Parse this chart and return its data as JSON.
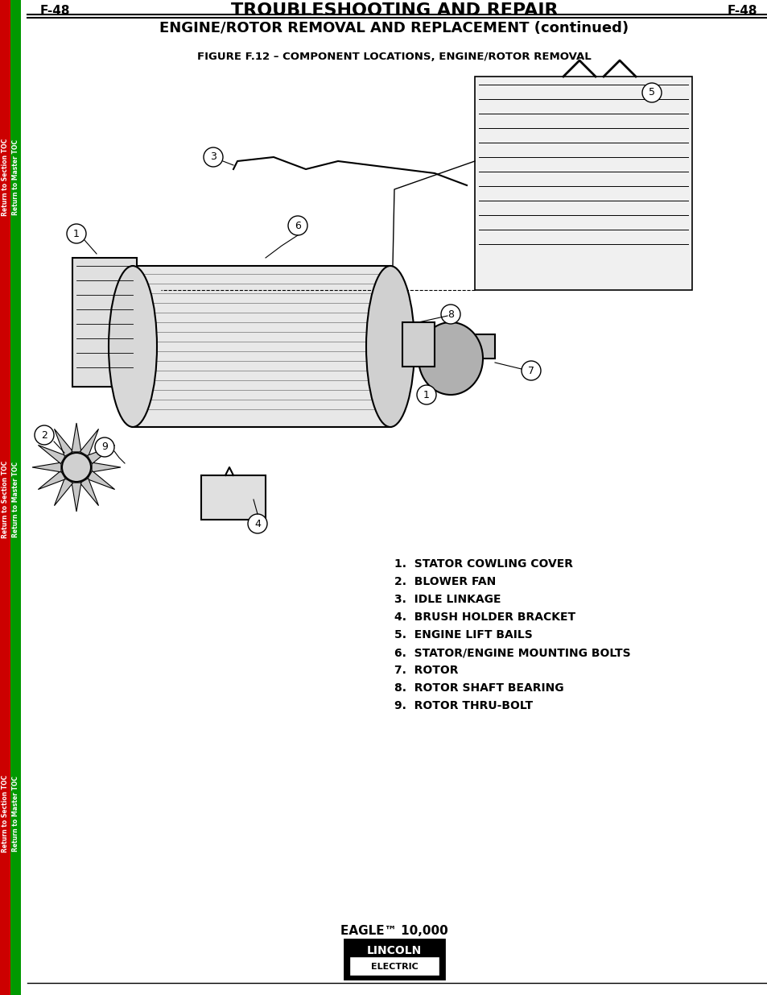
{
  "page_num": "F-48",
  "main_title": "TROUBLESHOOTING AND REPAIR",
  "sub_title": "ENGINE/ROTOR REMOVAL AND REPLACEMENT (continued)",
  "figure_caption": "FIGURE F.12 – COMPONENT LOCATIONS, ENGINE/ROTOR REMOVAL",
  "parts_list": [
    "1.  STATOR COWLING COVER",
    "2.  BLOWER FAN",
    "3.  IDLE LINKAGE",
    "4.  BRUSH HOLDER BRACKET",
    "5.  ENGINE LIFT BAILS",
    "6.  STATOR/ENGINE MOUNTING BOLTS",
    "7.  ROTOR",
    "8.  ROTOR SHAFT BEARING",
    "9.  ROTOR THRU-BOLT"
  ],
  "footer_text": "EAGLE™ 10,000",
  "left_labels_red": [
    "Return to Section TOC",
    "Return to Section TOC",
    "Return to Section TOC"
  ],
  "left_labels_green": [
    "Return to Master TOC",
    "Return to Master TOC",
    "Return to Master TOC"
  ],
  "bg_color": "#ffffff",
  "border_left_red": "#cc0000",
  "border_left_green": "#009900",
  "text_color": "#000000"
}
